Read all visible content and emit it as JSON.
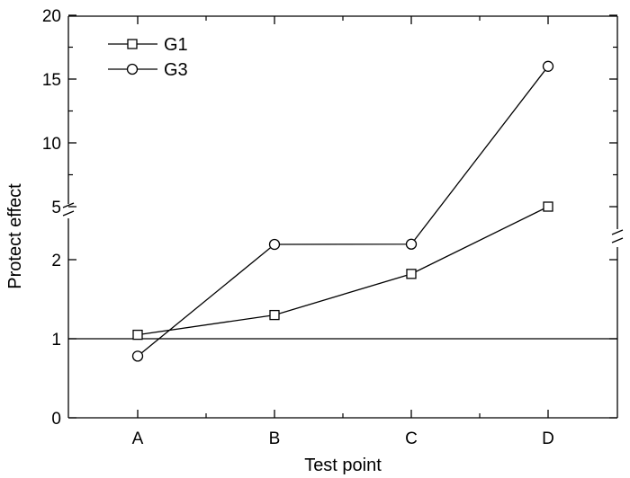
{
  "chart_data": {
    "type": "line",
    "title": "",
    "xlabel": "Test point",
    "ylabel": "Protect effect",
    "categories": [
      "A",
      "B",
      "C",
      "D"
    ],
    "axis_break": "between 2 and 5",
    "ylim": [
      0,
      20
    ],
    "yticks": [
      {
        "value": 0,
        "label": "0"
      },
      {
        "value": 1,
        "label": "1"
      },
      {
        "value": 2,
        "label": "2"
      },
      {
        "value": 5,
        "label": "5"
      },
      {
        "value": 10,
        "label": "10"
      },
      {
        "value": 15,
        "label": "15"
      },
      {
        "value": 20,
        "label": "20"
      }
    ],
    "reference_line": 1,
    "legend_position": "top-left",
    "series": [
      {
        "name": "G1",
        "marker": "square",
        "values": [
          1.05,
          1.3,
          1.82,
          5.0
        ]
      },
      {
        "name": "G3",
        "marker": "circle",
        "values": [
          0.78,
          2.04,
          2.06,
          16.0
        ]
      }
    ]
  }
}
